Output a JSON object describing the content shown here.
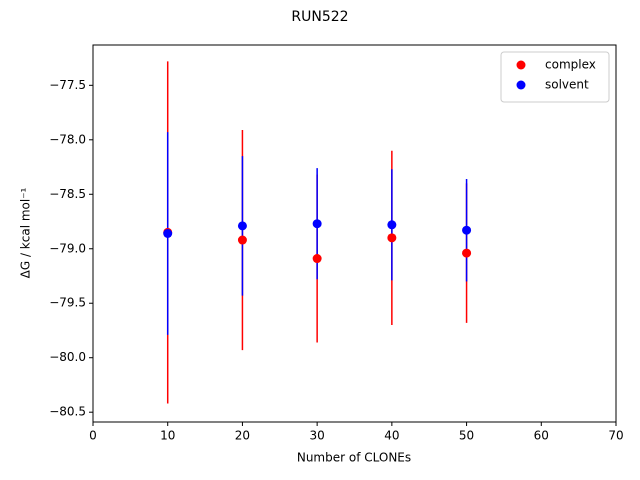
{
  "chart_data": {
    "type": "errorbar-scatter",
    "title": "RUN522",
    "x_label": "Number of CLONEs",
    "y_label": "ΔG / kcal mol⁻¹",
    "x": [
      10,
      20,
      30,
      40,
      50
    ],
    "series": [
      {
        "name": "complex",
        "color": "#ff0000",
        "values": [
          -78.85,
          -78.92,
          -79.09,
          -78.9,
          -79.04
        ],
        "errors": [
          1.57,
          1.01,
          0.77,
          0.8,
          0.64
        ]
      },
      {
        "name": "solvent",
        "color": "#0000ff",
        "values": [
          -78.86,
          -78.79,
          -78.77,
          -78.78,
          -78.83
        ],
        "errors": [
          0.93,
          0.64,
          0.51,
          0.51,
          0.47
        ]
      }
    ],
    "xlim": [
      0,
      70
    ],
    "xticks": [
      0,
      10,
      20,
      30,
      40,
      50,
      60,
      70
    ],
    "ylim": [
      -80.59,
      -77.13
    ],
    "yticks": [
      {
        "value": -80.5,
        "label": "−80.5"
      },
      {
        "value": -80.0,
        "label": "−80.0"
      },
      {
        "value": -79.5,
        "label": "−79.5"
      },
      {
        "value": -79.0,
        "label": "−79.0"
      },
      {
        "value": -78.5,
        "label": "−78.5"
      },
      {
        "value": -78.0,
        "label": "−78.0"
      },
      {
        "value": -77.5,
        "label": "−77.5"
      }
    ],
    "legend": "upper right",
    "grid": false
  }
}
